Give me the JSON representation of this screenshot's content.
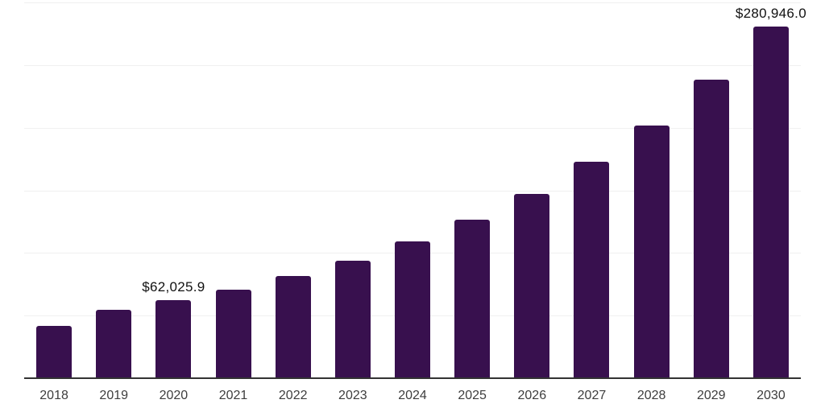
{
  "chart_data": {
    "type": "bar",
    "title": "",
    "xlabel": "",
    "ylabel": "",
    "categories": [
      "2018",
      "2019",
      "2020",
      "2021",
      "2022",
      "2023",
      "2024",
      "2025",
      "2026",
      "2027",
      "2028",
      "2029",
      "2030"
    ],
    "values": [
      41800,
      54900,
      62025.9,
      70700,
      81300,
      94100,
      109000,
      126700,
      147400,
      172500,
      201900,
      238500,
      280946.0
    ],
    "value_labels": {
      "2020": "$62,025.9",
      "2030": "$280,946.0"
    },
    "ylim": [
      0,
      300000
    ],
    "gridline_step": 50000,
    "grid": true,
    "legend": false,
    "colors": {
      "bar": "#38104E",
      "axis_line": "#333333",
      "gridline": "#f0f0f0",
      "tick_label": "#3d3d3d",
      "value_label": "#111111",
      "background": "#ffffff"
    }
  }
}
